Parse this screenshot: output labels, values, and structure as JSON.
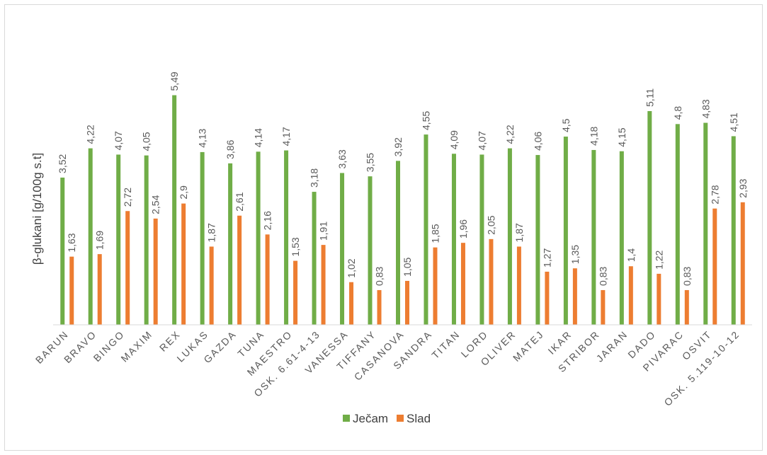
{
  "chart_data": {
    "type": "bar",
    "title": "",
    "xlabel": "",
    "ylabel": "β-glukani [g/100g s.t]",
    "ylim": [
      0,
      6
    ],
    "grid": false,
    "legend_position": "bottom",
    "categories": [
      "BARUN",
      "BRAVO",
      "BINGO",
      "MAXIM",
      "REX",
      "LUKAS",
      "GAZDA",
      "TUNA",
      "MAESTRO",
      "OSK. 6.61-4-13",
      "VANESSA",
      "TIFFANY",
      "CASANOVA",
      "SANDRA",
      "TITAN",
      "LORD",
      "OLIVER",
      "MATEJ",
      "IKAR",
      "STRIBOR",
      "JARAN",
      "DADO",
      "PIVARAC",
      "OSVIT",
      "OSK. 5.119-10-12"
    ],
    "series": [
      {
        "name": "Ječam",
        "color": "#70ad47",
        "values": [
          3.52,
          4.22,
          4.07,
          4.05,
          5.49,
          4.13,
          3.86,
          4.14,
          4.17,
          3.18,
          3.63,
          3.55,
          3.92,
          4.55,
          4.09,
          4.07,
          4.22,
          4.06,
          4.5,
          4.18,
          4.15,
          5.11,
          4.8,
          4.83,
          4.51
        ],
        "labels": [
          "3,52",
          "4,22",
          "4,07",
          "4,05",
          "5,49",
          "4,13",
          "3,86",
          "4,14",
          "4,17",
          "3,18",
          "3,63",
          "3,55",
          "3,92",
          "4,55",
          "4,09",
          "4,07",
          "4,22",
          "4,06",
          "4,5",
          "4,18",
          "4,15",
          "5,11",
          "4,8",
          "4,83",
          "4,51"
        ]
      },
      {
        "name": "Slad",
        "color": "#ed7d31",
        "values": [
          1.63,
          1.69,
          2.72,
          2.54,
          2.9,
          1.87,
          2.61,
          2.16,
          1.53,
          1.91,
          1.02,
          0.83,
          1.05,
          1.85,
          1.96,
          2.05,
          1.87,
          1.27,
          1.35,
          0.83,
          1.4,
          1.22,
          0.83,
          2.78,
          2.93
        ],
        "labels": [
          "1,63",
          "1,69",
          "2,72",
          "2,54",
          "2,9",
          "1,87",
          "2,61",
          "2,16",
          "1,53",
          "1,91",
          "1,02",
          "0,83",
          "1,05",
          "1,85",
          "1,96",
          "2,05",
          "1,87",
          "1,27",
          "1,35",
          "0,83",
          "1,4",
          "1,22",
          "0,83",
          "2,78",
          "2,93"
        ]
      }
    ]
  }
}
